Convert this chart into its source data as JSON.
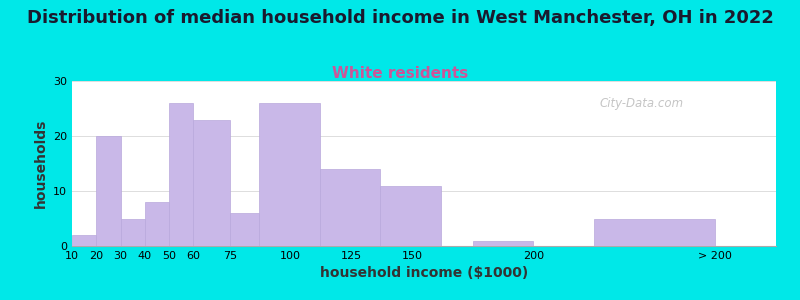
{
  "title": "Distribution of median household income in West Manchester, OH in 2022",
  "subtitle": "White residents",
  "xlabel": "household income ($1000)",
  "ylabel": "households",
  "bar_labels": [
    "10",
    "20",
    "30",
    "40",
    "50",
    "60",
    "75",
    "100",
    "125",
    "150",
    "200",
    "> 200"
  ],
  "bar_heights": [
    2,
    20,
    5,
    8,
    26,
    23,
    6,
    26,
    14,
    11,
    1,
    5
  ],
  "bar_color": "#c9b8e8",
  "bar_edgecolor": "#b8a8dc",
  "background_color": "#00e8e8",
  "plot_bg_color_left": "#ddf0dd",
  "plot_bg_color_right": "#f8f8f4",
  "ylim": [
    0,
    30
  ],
  "yticks": [
    0,
    10,
    20,
    30
  ],
  "title_fontsize": 13,
  "subtitle_fontsize": 11,
  "subtitle_color": "#cc5599",
  "axis_label_fontsize": 10,
  "tick_fontsize": 8,
  "watermark_text": "City-Data.com",
  "watermark_color": "#bbbbbb",
  "bar_left_edges": [
    10,
    20,
    30,
    40,
    50,
    60,
    75,
    87,
    112,
    137,
    175,
    225
  ],
  "bar_widths": [
    10,
    10,
    10,
    10,
    10,
    15,
    12,
    25,
    25,
    25,
    25,
    50
  ],
  "tick_positions": [
    10,
    20,
    30,
    40,
    50,
    60,
    75,
    100,
    125,
    150,
    200,
    275
  ],
  "xlim": [
    10,
    300
  ]
}
